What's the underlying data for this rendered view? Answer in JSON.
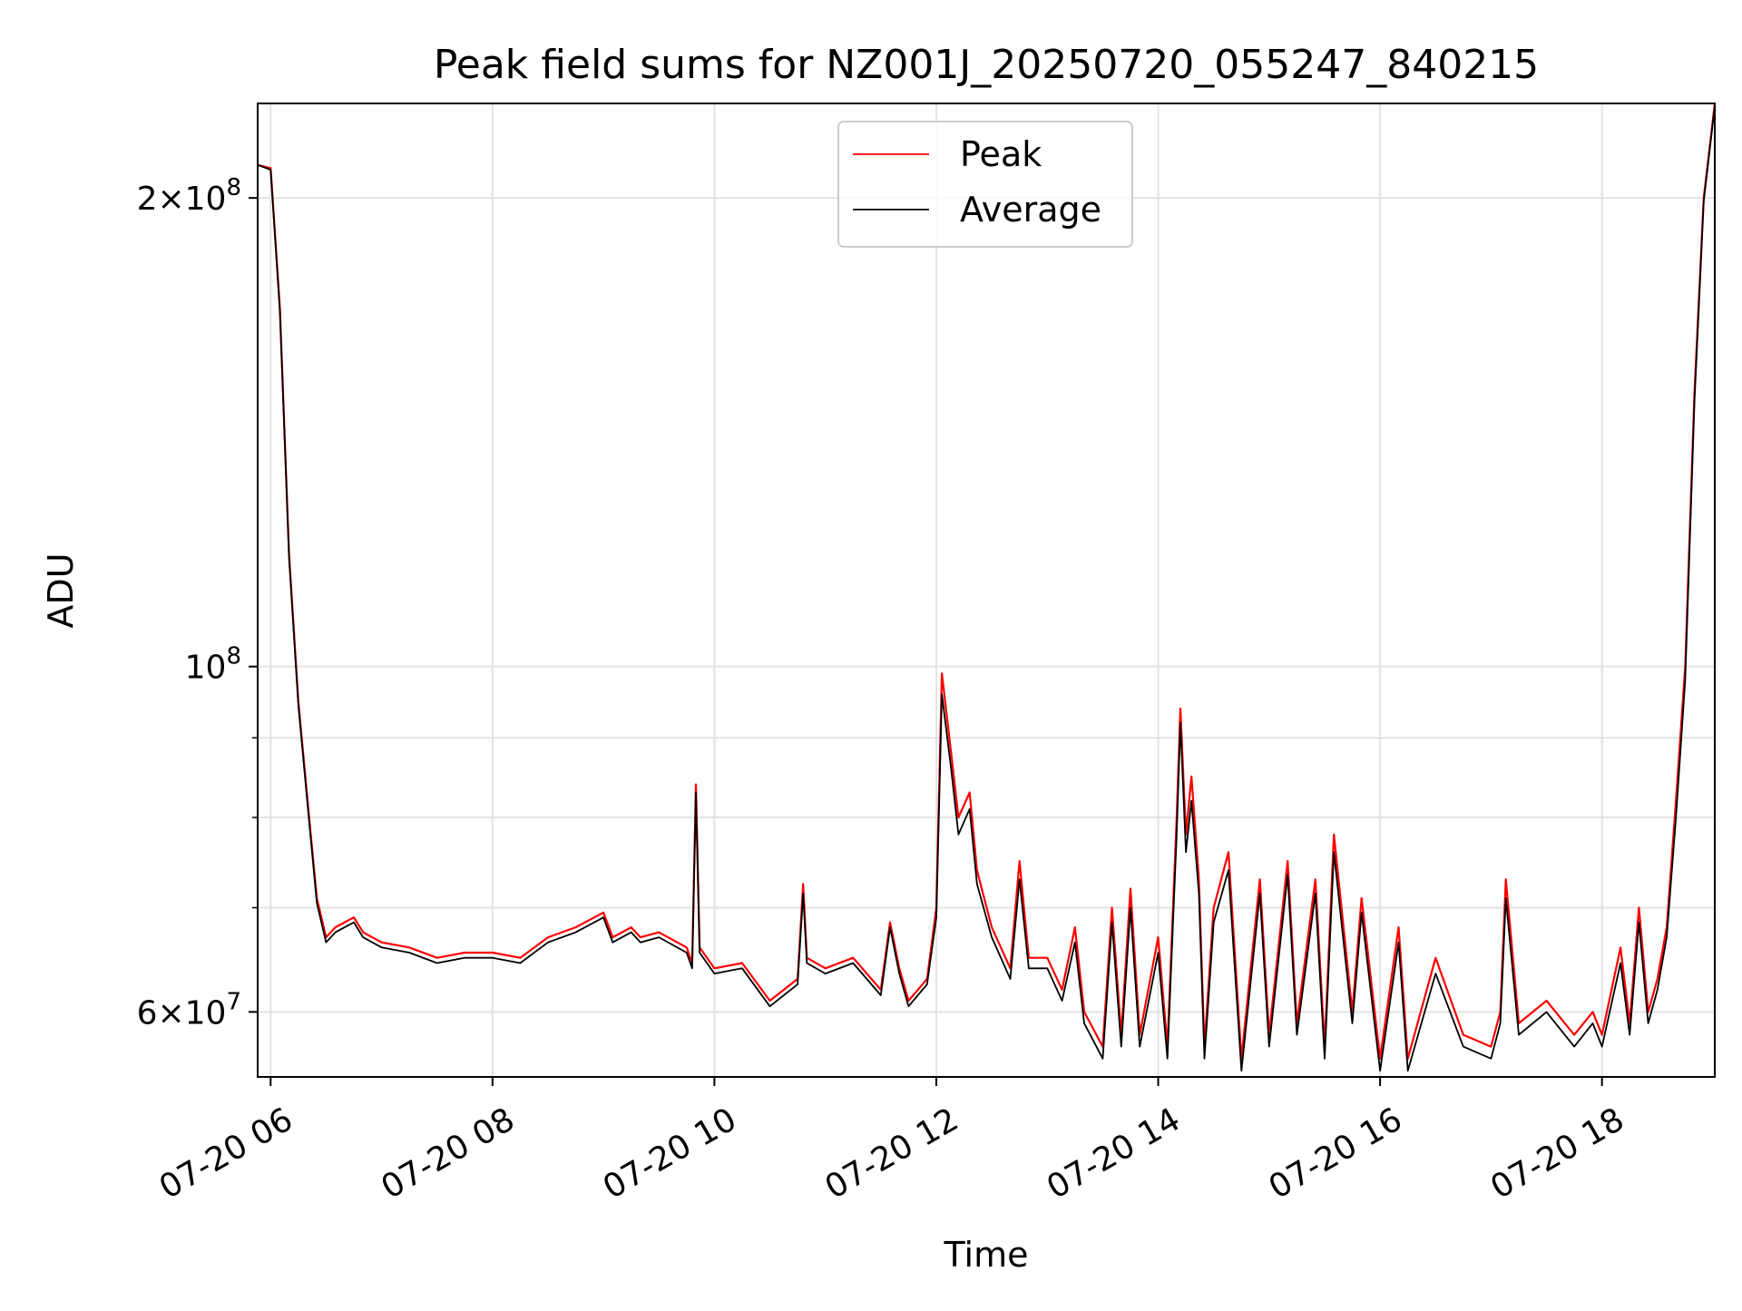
{
  "chart_data": {
    "type": "line",
    "title": "Peak field sums for NZ001J_20250720_055247_840215",
    "xlabel": "Time",
    "ylabel": "ADU",
    "y_scale": "log",
    "ylim": [
      54500000,
      230000000
    ],
    "xlim": [
      "2025-07-20 05:53",
      "2025-07-20 19:01"
    ],
    "grid": true,
    "legend_position": "top-center",
    "x_ticks": [
      "2025-07-20 06:00",
      "2025-07-20 08:00",
      "2025-07-20 10:00",
      "2025-07-20 12:00",
      "2025-07-20 14:00",
      "2025-07-20 16:00",
      "2025-07-20 18:00"
    ],
    "x_tick_labels": [
      "07-20 06",
      "07-20 08",
      "07-20 10",
      "07-20 12",
      "07-20 14",
      "07-20 16",
      "07-20 18"
    ],
    "y_major_ticks": [
      {
        "value": 200000000,
        "mantissa": "2",
        "exponent": "8"
      },
      {
        "value": 100000000,
        "mantissa": "",
        "exponent": "8"
      },
      {
        "value": 60000000,
        "mantissa": "6",
        "exponent": "7"
      }
    ],
    "y_minor_ticks": [
      70000000,
      80000000,
      90000000
    ],
    "x": [
      "2025-07-20 05:53",
      "2025-07-20 06:00",
      "2025-07-20 06:05",
      "2025-07-20 06:10",
      "2025-07-20 06:15",
      "2025-07-20 06:20",
      "2025-07-20 06:25",
      "2025-07-20 06:30",
      "2025-07-20 06:35",
      "2025-07-20 06:40",
      "2025-07-20 06:45",
      "2025-07-20 06:50",
      "2025-07-20 07:00",
      "2025-07-20 07:15",
      "2025-07-20 07:30",
      "2025-07-20 07:45",
      "2025-07-20 08:00",
      "2025-07-20 08:15",
      "2025-07-20 08:30",
      "2025-07-20 08:45",
      "2025-07-20 09:00",
      "2025-07-20 09:05",
      "2025-07-20 09:15",
      "2025-07-20 09:20",
      "2025-07-20 09:30",
      "2025-07-20 09:45",
      "2025-07-20 09:48",
      "2025-07-20 09:50",
      "2025-07-20 09:52",
      "2025-07-20 10:00",
      "2025-07-20 10:15",
      "2025-07-20 10:30",
      "2025-07-20 10:45",
      "2025-07-20 10:48",
      "2025-07-20 10:50",
      "2025-07-20 11:00",
      "2025-07-20 11:15",
      "2025-07-20 11:30",
      "2025-07-20 11:35",
      "2025-07-20 11:40",
      "2025-07-20 11:45",
      "2025-07-20 11:55",
      "2025-07-20 12:00",
      "2025-07-20 12:03",
      "2025-07-20 12:08",
      "2025-07-20 12:12",
      "2025-07-20 12:18",
      "2025-07-20 12:22",
      "2025-07-20 12:30",
      "2025-07-20 12:40",
      "2025-07-20 12:45",
      "2025-07-20 12:50",
      "2025-07-20 13:00",
      "2025-07-20 13:08",
      "2025-07-20 13:15",
      "2025-07-20 13:20",
      "2025-07-20 13:30",
      "2025-07-20 13:35",
      "2025-07-20 13:40",
      "2025-07-20 13:45",
      "2025-07-20 13:50",
      "2025-07-20 14:00",
      "2025-07-20 14:05",
      "2025-07-20 14:10",
      "2025-07-20 14:12",
      "2025-07-20 14:15",
      "2025-07-20 14:18",
      "2025-07-20 14:22",
      "2025-07-20 14:25",
      "2025-07-20 14:30",
      "2025-07-20 14:38",
      "2025-07-20 14:45",
      "2025-07-20 14:55",
      "2025-07-20 15:00",
      "2025-07-20 15:10",
      "2025-07-20 15:15",
      "2025-07-20 15:25",
      "2025-07-20 15:30",
      "2025-07-20 15:35",
      "2025-07-20 15:45",
      "2025-07-20 15:50",
      "2025-07-20 16:00",
      "2025-07-20 16:10",
      "2025-07-20 16:15",
      "2025-07-20 16:30",
      "2025-07-20 16:45",
      "2025-07-20 17:00",
      "2025-07-20 17:05",
      "2025-07-20 17:08",
      "2025-07-20 17:15",
      "2025-07-20 17:30",
      "2025-07-20 17:45",
      "2025-07-20 17:55",
      "2025-07-20 18:00",
      "2025-07-20 18:10",
      "2025-07-20 18:15",
      "2025-07-20 18:20",
      "2025-07-20 18:25",
      "2025-07-20 18:30",
      "2025-07-20 18:35",
      "2025-07-20 18:40",
      "2025-07-20 18:45",
      "2025-07-20 18:50",
      "2025-07-20 18:55",
      "2025-07-20 19:01"
    ],
    "series": [
      {
        "name": "Peak",
        "color": "#ff0000",
        "values": [
          210000000,
          209000000,
          170000000,
          118000000,
          95000000,
          82000000,
          71000000,
          67000000,
          68000000,
          68500000,
          69000000,
          67500000,
          66500000,
          66000000,
          65000000,
          65500000,
          65500000,
          65000000,
          67000000,
          68000000,
          69500000,
          67000000,
          68000000,
          67000000,
          67500000,
          66000000,
          64500000,
          84000000,
          66000000,
          64000000,
          64500000,
          61000000,
          63000000,
          72500000,
          65000000,
          64000000,
          65000000,
          62000000,
          68500000,
          64000000,
          61000000,
          63000000,
          70000000,
          99000000,
          88000000,
          80000000,
          83000000,
          74000000,
          68000000,
          64000000,
          75000000,
          65000000,
          65000000,
          62000000,
          68000000,
          60000000,
          57000000,
          70000000,
          58000000,
          72000000,
          58000000,
          67000000,
          57000000,
          80000000,
          94000000,
          78000000,
          85000000,
          73000000,
          57000000,
          70000000,
          76000000,
          56000000,
          73000000,
          58000000,
          75000000,
          59000000,
          73000000,
          57000000,
          78000000,
          60000000,
          71000000,
          56000000,
          68000000,
          56000000,
          65000000,
          58000000,
          57000000,
          60000000,
          73000000,
          59000000,
          61000000,
          58000000,
          60000000,
          58000000,
          66000000,
          59000000,
          70000000,
          60000000,
          63000000,
          68000000,
          82000000,
          100000000,
          150000000,
          200000000,
          230000000
        ]
      },
      {
        "name": "Average",
        "color": "#000000",
        "values": [
          210000000,
          208500000,
          169000000,
          117500000,
          94500000,
          81500000,
          70500000,
          66500000,
          67500000,
          68000000,
          68500000,
          67000000,
          66000000,
          65500000,
          64500000,
          65000000,
          65000000,
          64500000,
          66500000,
          67500000,
          69000000,
          66500000,
          67500000,
          66500000,
          67000000,
          65500000,
          64000000,
          83000000,
          65500000,
          63500000,
          64000000,
          60500000,
          62500000,
          71500000,
          64500000,
          63500000,
          64500000,
          61500000,
          68000000,
          63500000,
          60500000,
          62500000,
          69000000,
          96000000,
          86000000,
          78000000,
          81000000,
          72500000,
          67000000,
          63000000,
          73000000,
          64000000,
          64000000,
          61000000,
          66500000,
          59000000,
          56000000,
          68500000,
          57000000,
          70000000,
          57000000,
          65500000,
          56000000,
          78000000,
          92000000,
          76000000,
          82000000,
          71500000,
          56000000,
          68500000,
          74000000,
          55000000,
          71500000,
          57000000,
          73500000,
          58000000,
          71500000,
          56000000,
          76000000,
          59000000,
          69500000,
          55000000,
          66500000,
          55000000,
          63500000,
          57000000,
          56000000,
          59000000,
          71000000,
          58000000,
          60000000,
          57000000,
          59000000,
          57000000,
          64500000,
          58000000,
          68500000,
          59000000,
          62000000,
          67000000,
          80000000,
          98000000,
          148000000,
          199000000,
          229000000
        ]
      }
    ]
  }
}
